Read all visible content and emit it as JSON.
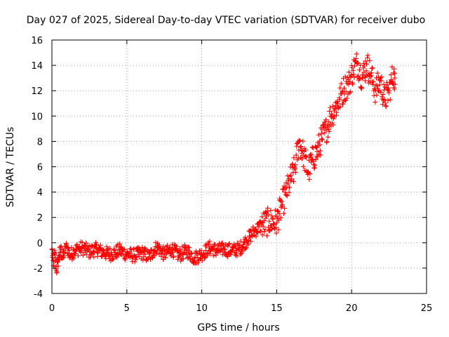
{
  "chart_data": {
    "type": "scatter",
    "title": "Day 027 of 2025, Sidereal Day-to-day VTEC variation (SDTVAR) for receiver dubo",
    "xlabel": "GPS time / hours",
    "ylabel": "SDTVAR / TECUs",
    "xlim": [
      0,
      25
    ],
    "ylim": [
      -4,
      16
    ],
    "xticks": [
      "0",
      "5",
      "10",
      "15",
      "20",
      "25"
    ],
    "yticks": [
      "-4",
      "-2",
      "0",
      "2",
      "4",
      "6",
      "8",
      "10",
      "12",
      "14",
      "16"
    ],
    "grid": true,
    "marker": "+",
    "color": "#ff0000",
    "series": [
      {
        "name": "SDTVAR",
        "x": [
          0.0,
          0.1,
          0.2,
          0.3,
          0.4,
          0.5,
          0.6,
          0.7,
          0.8,
          1.0,
          1.2,
          1.5,
          2.0,
          2.5,
          3.0,
          3.5,
          4.0,
          4.5,
          5.0,
          5.5,
          6.0,
          6.5,
          7.0,
          7.5,
          8.0,
          8.5,
          9.0,
          9.5,
          10.0,
          10.5,
          11.0,
          11.5,
          12.0,
          12.5,
          13.0,
          13.5,
          14.0,
          14.5,
          15.0,
          15.3,
          15.6,
          15.9,
          16.2,
          16.5,
          16.8,
          17.1,
          17.4,
          17.7,
          18.0,
          18.3,
          18.6,
          18.9,
          19.2,
          19.5,
          19.8,
          20.1,
          20.4,
          20.7,
          21.0,
          21.3,
          21.6,
          21.9,
          22.2,
          22.5,
          22.8,
          22.9
        ],
        "values": [
          -0.5,
          -1.8,
          -0.8,
          -2.2,
          -1.5,
          -1.0,
          -0.5,
          -1.2,
          -0.8,
          -0.3,
          -1.0,
          -0.6,
          -0.4,
          -0.7,
          -0.5,
          -0.8,
          -0.9,
          -0.6,
          -0.9,
          -1.0,
          -0.8,
          -1.1,
          -0.3,
          -0.9,
          -0.5,
          -1.0,
          -0.6,
          -1.2,
          -0.9,
          -0.4,
          -0.6,
          -0.5,
          -0.6,
          -0.5,
          0.2,
          0.9,
          1.4,
          1.7,
          1.6,
          2.8,
          3.8,
          4.9,
          5.8,
          8.0,
          6.9,
          5.6,
          6.6,
          7.2,
          8.2,
          8.9,
          10.0,
          10.6,
          11.3,
          12.2,
          12.5,
          13.6,
          14.2,
          13.0,
          14.1,
          13.2,
          12.0,
          12.8,
          11.3,
          12.0,
          13.4,
          12.5
        ]
      }
    ]
  }
}
